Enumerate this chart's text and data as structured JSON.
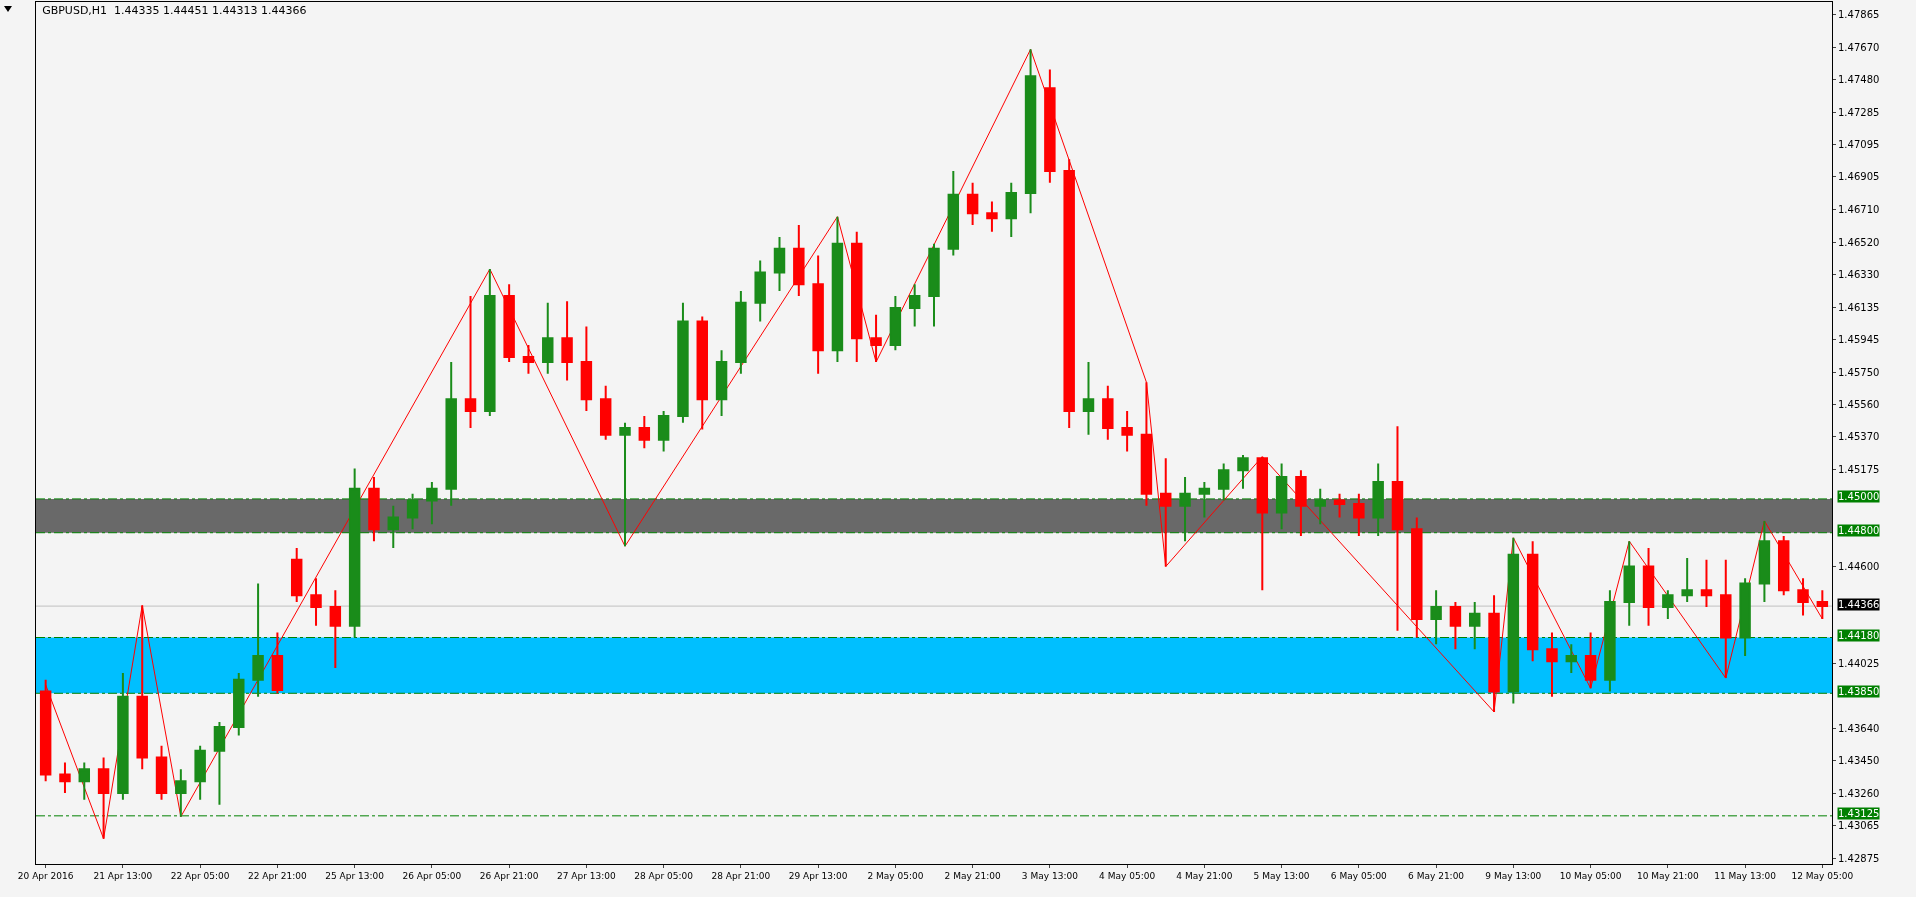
{
  "chart_data": {
    "type": "candlestick",
    "title": "GBPUSD,H1  1.44335 1.44451 1.44313 1.44366",
    "categories": [
      "20 Apr 2016",
      null,
      null,
      null,
      "21 Apr 13:00",
      null,
      null,
      null,
      "22 Apr 05:00",
      null,
      null,
      null,
      "22 Apr 21:00",
      null,
      null,
      null,
      "25 Apr 13:00",
      null,
      null,
      null,
      "26 Apr 05:00",
      null,
      null,
      null,
      "26 Apr 21:00",
      null,
      null,
      null,
      "27 Apr 13:00",
      null,
      null,
      null,
      "28 Apr 05:00",
      null,
      null,
      null,
      "28 Apr 21:00",
      null,
      null,
      null,
      "29 Apr 13:00",
      null,
      null,
      null,
      "2 May 05:00",
      null,
      null,
      null,
      "2 May 21:00",
      null,
      null,
      null,
      "3 May 13:00",
      null,
      null,
      null,
      "4 May 05:00",
      null,
      null,
      null,
      "4 May 21:00",
      null,
      null,
      null,
      "5 May 13:00",
      null,
      null,
      null,
      "6 May 05:00",
      null,
      null,
      null,
      "6 May 21:00",
      null,
      null,
      null,
      "9 May 13:00",
      null,
      null,
      null,
      "10 May 05:00",
      null,
      null,
      null,
      "10 May 21:00",
      null,
      null,
      null,
      "11 May 13:00",
      null,
      null,
      null,
      "12 May 05:00"
    ],
    "ohlc": [
      [
        1.4386,
        1.4393,
        1.4333,
        1.4337
      ],
      [
        1.4337,
        1.4344,
        1.4326,
        1.4333
      ],
      [
        1.4333,
        1.4344,
        1.4322,
        1.434
      ],
      [
        1.434,
        1.4347,
        1.4299,
        1.4326
      ],
      [
        1.4326,
        1.4397,
        1.4322,
        1.4383
      ],
      [
        1.4383,
        1.4437,
        1.434,
        1.4347
      ],
      [
        1.4347,
        1.4354,
        1.4322,
        1.4326
      ],
      [
        1.4326,
        1.434,
        1.4312,
        1.4333
      ],
      [
        1.4333,
        1.4354,
        1.4322,
        1.4351
      ],
      [
        1.4351,
        1.4368,
        1.4319,
        1.4365
      ],
      [
        1.4365,
        1.4397,
        1.436,
        1.4393
      ],
      [
        1.4393,
        1.445,
        1.4383,
        1.4407
      ],
      [
        1.4407,
        1.4421,
        1.4385,
        1.4387
      ],
      [
        1.4464,
        1.4471,
        1.4439,
        1.4443
      ],
      [
        1.4443,
        1.4453,
        1.4425,
        1.4436
      ],
      [
        1.4436,
        1.4446,
        1.44,
        1.4425
      ],
      [
        1.4425,
        1.4518,
        1.4418,
        1.4506
      ],
      [
        1.4506,
        1.4513,
        1.4475,
        1.4482
      ],
      [
        1.4482,
        1.4496,
        1.4471,
        1.4489
      ],
      [
        1.4489,
        1.4503,
        1.4482,
        1.4499
      ],
      [
        1.4499,
        1.451,
        1.4485,
        1.4506
      ],
      [
        1.4506,
        1.4581,
        1.4496,
        1.4559
      ],
      [
        1.4559,
        1.462,
        1.4542,
        1.4552
      ],
      [
        1.4552,
        1.4636,
        1.4549,
        1.462
      ],
      [
        1.462,
        1.4627,
        1.4581,
        1.4584
      ],
      [
        1.4584,
        1.4591,
        1.4574,
        1.4581
      ],
      [
        1.4581,
        1.4616,
        1.4574,
        1.4595
      ],
      [
        1.4595,
        1.4617,
        1.457,
        1.4581
      ],
      [
        1.4581,
        1.4602,
        1.4552,
        1.4559
      ],
      [
        1.4559,
        1.4567,
        1.4535,
        1.4538
      ],
      [
        1.4538,
        1.4545,
        1.4472,
        1.4542
      ],
      [
        1.4542,
        1.4549,
        1.453,
        1.4535
      ],
      [
        1.4535,
        1.4552,
        1.4528,
        1.4549
      ],
      [
        1.4549,
        1.4616,
        1.4545,
        1.4605
      ],
      [
        1.4605,
        1.4608,
        1.4541,
        1.4559
      ],
      [
        1.4559,
        1.4588,
        1.4549,
        1.4581
      ],
      [
        1.4581,
        1.4623,
        1.4574,
        1.4616
      ],
      [
        1.4616,
        1.4641,
        1.4605,
        1.4634
      ],
      [
        1.4634,
        1.4655,
        1.4623,
        1.4648
      ],
      [
        1.4648,
        1.4662,
        1.462,
        1.4627
      ],
      [
        1.4627,
        1.4644,
        1.4574,
        1.4588
      ],
      [
        1.4588,
        1.4667,
        1.4581,
        1.4651
      ],
      [
        1.4651,
        1.4658,
        1.4581,
        1.4595
      ],
      [
        1.4595,
        1.4609,
        1.4581,
        1.4591
      ],
      [
        1.4591,
        1.462,
        1.4588,
        1.4613
      ],
      [
        1.4613,
        1.4627,
        1.4602,
        1.462
      ],
      [
        1.462,
        1.4651,
        1.4602,
        1.4648
      ],
      [
        1.4648,
        1.4694,
        1.4644,
        1.468
      ],
      [
        1.468,
        1.4687,
        1.4662,
        1.4669
      ],
      [
        1.4669,
        1.4676,
        1.4658,
        1.4666
      ],
      [
        1.4666,
        1.4687,
        1.4655,
        1.4681
      ],
      [
        1.4681,
        1.4766,
        1.4669,
        1.475
      ],
      [
        1.4743,
        1.4754,
        1.4687,
        1.4694
      ],
      [
        1.4694,
        1.4701,
        1.4542,
        1.4552
      ],
      [
        1.4552,
        1.4581,
        1.4538,
        1.4559
      ],
      [
        1.4559,
        1.4567,
        1.4535,
        1.4542
      ],
      [
        1.4542,
        1.4552,
        1.4528,
        1.4538
      ],
      [
        1.4538,
        1.4569,
        1.4496,
        1.4503
      ],
      [
        1.4503,
        1.4524,
        1.446,
        1.4496
      ],
      [
        1.4496,
        1.4513,
        1.4475,
        1.4503
      ],
      [
        1.4503,
        1.451,
        1.4489,
        1.4506
      ],
      [
        1.4506,
        1.4521,
        1.4499,
        1.4517
      ],
      [
        1.4517,
        1.4526,
        1.4506,
        1.4524
      ],
      [
        1.4524,
        1.4525,
        1.4446,
        1.4492
      ],
      [
        1.4492,
        1.4521,
        1.4482,
        1.4513
      ],
      [
        1.4513,
        1.4517,
        1.4478,
        1.4496
      ],
      [
        1.4496,
        1.4506,
        1.4485,
        1.4499
      ],
      [
        1.4499,
        1.4503,
        1.4489,
        1.4497
      ],
      [
        1.4497,
        1.4503,
        1.4478,
        1.4489
      ],
      [
        1.4489,
        1.4521,
        1.4478,
        1.451
      ],
      [
        1.451,
        1.4543,
        1.4422,
        1.4482
      ],
      [
        1.4482,
        1.4489,
        1.4418,
        1.4429
      ],
      [
        1.4429,
        1.4446,
        1.4414,
        1.4436
      ],
      [
        1.4436,
        1.4439,
        1.4411,
        1.4425
      ],
      [
        1.4425,
        1.4439,
        1.4411,
        1.4432
      ],
      [
        1.4432,
        1.4443,
        1.4374,
        1.4386
      ],
      [
        1.4386,
        1.4477,
        1.4379,
        1.4467
      ],
      [
        1.4467,
        1.4475,
        1.4404,
        1.4411
      ],
      [
        1.4411,
        1.4421,
        1.4383,
        1.4404
      ],
      [
        1.4404,
        1.4414,
        1.4397,
        1.4407
      ],
      [
        1.4407,
        1.4421,
        1.4388,
        1.4393
      ],
      [
        1.4393,
        1.4446,
        1.4386,
        1.4439
      ],
      [
        1.4439,
        1.4475,
        1.4425,
        1.446
      ],
      [
        1.446,
        1.4471,
        1.4425,
        1.4436
      ],
      [
        1.4436,
        1.4446,
        1.4429,
        1.4443
      ],
      [
        1.4443,
        1.4465,
        1.4439,
        1.4446
      ],
      [
        1.4446,
        1.4464,
        1.4436,
        1.4443
      ],
      [
        1.4443,
        1.4464,
        1.4394,
        1.4418
      ],
      [
        1.4418,
        1.4453,
        1.4407,
        1.445
      ],
      [
        1.445,
        1.4487,
        1.4439,
        1.4475
      ],
      [
        1.4475,
        1.4478,
        1.4443,
        1.4446
      ],
      [
        1.4446,
        1.4453,
        1.4431,
        1.4439
      ],
      [
        1.4439,
        1.4446,
        1.4429,
        1.44366
      ]
    ],
    "colors": [
      "#ff0000",
      "#ff0000",
      "#1a8c1a",
      "#ff0000",
      "#1a8c1a",
      "#ff0000",
      "#ff0000",
      "#1a8c1a",
      "#1a8c1a",
      "#1a8c1a",
      "#1a8c1a",
      "#1a8c1a",
      "#ff0000",
      "#ff0000",
      "#ff0000",
      "#ff0000",
      "#1a8c1a",
      "#ff0000",
      "#1a8c1a",
      "#1a8c1a",
      "#1a8c1a",
      "#1a8c1a",
      "#ff0000",
      "#1a8c1a",
      "#ff0000",
      "#ff0000",
      "#1a8c1a",
      "#ff0000",
      "#ff0000",
      "#ff0000",
      "#1a8c1a",
      "#ff0000",
      "#1a8c1a",
      "#1a8c1a",
      "#ff0000",
      "#1a8c1a",
      "#1a8c1a",
      "#1a8c1a",
      "#1a8c1a",
      "#ff0000",
      "#ff0000",
      "#1a8c1a",
      "#ff0000",
      "#ff0000",
      "#1a8c1a",
      "#1a8c1a",
      "#1a8c1a",
      "#1a8c1a",
      "#ff0000",
      "#ff0000",
      "#1a8c1a",
      "#1a8c1a",
      "#ff0000",
      "#ff0000",
      "#1a8c1a",
      "#ff0000",
      "#ff0000",
      "#ff0000",
      "#ff0000",
      "#1a8c1a",
      "#1a8c1a",
      "#1a8c1a",
      "#1a8c1a",
      "#ff0000",
      "#1a8c1a",
      "#ff0000",
      "#1a8c1a",
      "#ff0000",
      "#ff0000",
      "#1a8c1a",
      "#ff0000",
      "#ff0000",
      "#1a8c1a",
      "#ff0000",
      "#1a8c1a",
      "#ff0000",
      "#1a8c1a",
      "#ff0000",
      "#ff0000",
      "#1a8c1a",
      "#ff0000",
      "#1a8c1a",
      "#1a8c1a",
      "#ff0000",
      "#1a8c1a",
      "#1a8c1a",
      "#ff0000",
      "#ff0000",
      "#1a8c1a",
      "#1a8c1a",
      "#ff0000",
      "#ff0000",
      "#ff0000"
    ],
    "series": [
      {
        "type": "line",
        "color": "#ff0000",
        "values": [
          1.439,
          null,
          null,
          1.4299,
          null,
          1.4437,
          null,
          1.4312,
          null,
          null,
          null,
          null,
          null,
          null,
          null,
          null,
          null,
          null,
          null,
          null,
          null,
          null,
          null,
          1.4636,
          null,
          null,
          null,
          null,
          null,
          null,
          1.4472,
          null,
          null,
          null,
          null,
          null,
          null,
          null,
          null,
          null,
          null,
          1.4667,
          null,
          1.4581,
          null,
          null,
          null,
          null,
          null,
          null,
          null,
          1.4766,
          null,
          null,
          null,
          null,
          null,
          1.4569,
          1.446,
          null,
          null,
          null,
          null,
          1.4525,
          null,
          null,
          null,
          null,
          null,
          null,
          null,
          null,
          null,
          null,
          null,
          1.4374,
          1.4477,
          null,
          null,
          null,
          1.4388,
          null,
          1.4475,
          null,
          null,
          null,
          null,
          1.4394,
          null,
          1.4487,
          null,
          null,
          1.4429
        ]
      }
    ],
    "ylim": [
      1.4284,
      1.4794
    ],
    "yticks": [
      {
        "value": 1.42875,
        "label": "1.42875"
      },
      {
        "value": 1.43065,
        "label": "1.43065"
      },
      {
        "value": 1.4326,
        "label": "1.43260"
      },
      {
        "value": 1.4345,
        "label": "1.43450"
      },
      {
        "value": 1.4364,
        "label": "1.43640"
      },
      {
        "value": 1.44025,
        "label": "1.44025"
      },
      {
        "value": 1.446,
        "label": "1.44600"
      },
      {
        "value": 1.45175,
        "label": "1.45175"
      },
      {
        "value": 1.4537,
        "label": "1.45370"
      },
      {
        "value": 1.4556,
        "label": "1.45560"
      },
      {
        "value": 1.4575,
        "label": "1.45750"
      },
      {
        "value": 1.45945,
        "label": "1.45945"
      },
      {
        "value": 1.46135,
        "label": "1.46135"
      },
      {
        "value": 1.4633,
        "label": "1.46330"
      },
      {
        "value": 1.4652,
        "label": "1.46520"
      },
      {
        "value": 1.4671,
        "label": "1.46710"
      },
      {
        "value": 1.46905,
        "label": "1.46905"
      },
      {
        "value": 1.47095,
        "label": "1.47095"
      },
      {
        "value": 1.47285,
        "label": "1.47285"
      },
      {
        "value": 1.4748,
        "label": "1.47480"
      },
      {
        "value": 1.4767,
        "label": "1.47670"
      },
      {
        "value": 1.47865,
        "label": "1.47865"
      }
    ],
    "ref_lines": [
      {
        "axis": "y",
        "value": 1.45,
        "label": "1.45000",
        "color": "#008000",
        "line_style": "dashed"
      },
      {
        "axis": "y",
        "value": 1.448,
        "label": "1.44800",
        "color": "#008000",
        "line_style": "dashed"
      },
      {
        "axis": "y",
        "value": 1.4418,
        "label": "1.44180",
        "color": "#008000",
        "line_style": "dashed"
      },
      {
        "axis": "y",
        "value": 1.4385,
        "label": "1.43850",
        "color": "#008000",
        "line_style": "dashed"
      },
      {
        "axis": "y",
        "value": 1.43125,
        "label": "1.43125",
        "color": "#008000",
        "line_style": "dashed"
      },
      {
        "axis": "y",
        "value": 1.44366,
        "label": "1.44366",
        "color": "#c0c0c0",
        "line_style": "solid"
      }
    ],
    "bands": [
      {
        "axis": "y",
        "from": 1.448,
        "to": 1.45,
        "color": "#696969"
      },
      {
        "axis": "y",
        "from": 1.4385,
        "to": 1.4418,
        "color": "#00bfff"
      }
    ],
    "grid": false
  }
}
